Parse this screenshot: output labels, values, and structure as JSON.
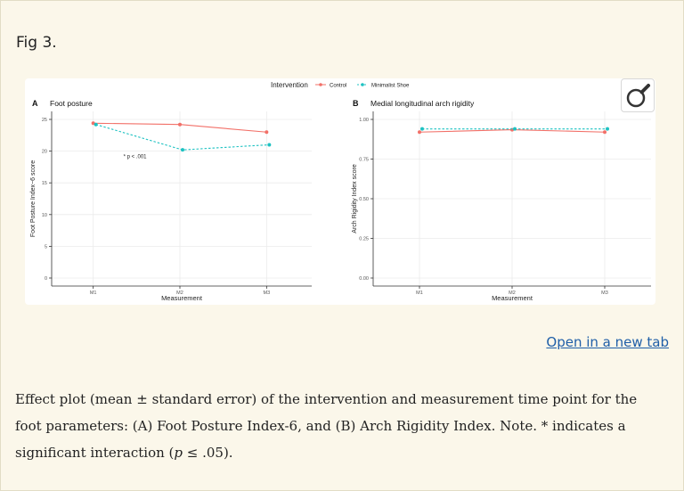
{
  "figure": {
    "label": "Fig 3.",
    "open_link": "Open in a new tab",
    "caption_parts": {
      "a": "Effect plot (mean ± standard error) of the intervention and measurement time point for the foot parameters: (A) Foot Posture Index-6, and (B) Arch Rigidity Index. Note. * indicates a significant interaction (",
      "p": "p",
      "b": " ≤ .05)."
    }
  },
  "legend": {
    "title": "Intervention",
    "items": [
      "Control",
      "Minimalist Shoe"
    ]
  },
  "colors": {
    "control": "#f27068",
    "minimalist": "#1ec2c2",
    "link": "#1f5fa8",
    "background": "#faf6e8"
  },
  "icons": {
    "zoom": "magnifier-icon"
  },
  "chart_data": [
    {
      "type": "line",
      "panel": "A",
      "title": "Foot posture",
      "xlabel": "Measurement",
      "ylabel": "Foot Posture Index−6 score",
      "categories": [
        "M1",
        "M2",
        "M3"
      ],
      "ylim": [
        0,
        25
      ],
      "yticks": [
        "0",
        "5",
        "10",
        "15",
        "20",
        "25"
      ],
      "grid": true,
      "annotation": "* p < .001",
      "series": [
        {
          "name": "Control",
          "values": [
            24.4,
            24.2,
            23.0
          ]
        },
        {
          "name": "Minimalist Shoe",
          "values": [
            24.2,
            20.2,
            21.0
          ]
        }
      ]
    },
    {
      "type": "line",
      "panel": "B",
      "title": "Medial longitudinal arch rigidity",
      "xlabel": "Measurement",
      "ylabel": "Arch Rigidity Index score",
      "categories": [
        "M1",
        "M2",
        "M3"
      ],
      "ylim": [
        0,
        1
      ],
      "yticks": [
        "0.00",
        "0.25",
        "0.50",
        "0.75",
        "1.00"
      ],
      "grid": true,
      "series": [
        {
          "name": "Control",
          "values": [
            0.92,
            0.935,
            0.92
          ]
        },
        {
          "name": "Minimalist Shoe",
          "values": [
            0.94,
            0.94,
            0.94
          ]
        }
      ]
    }
  ]
}
